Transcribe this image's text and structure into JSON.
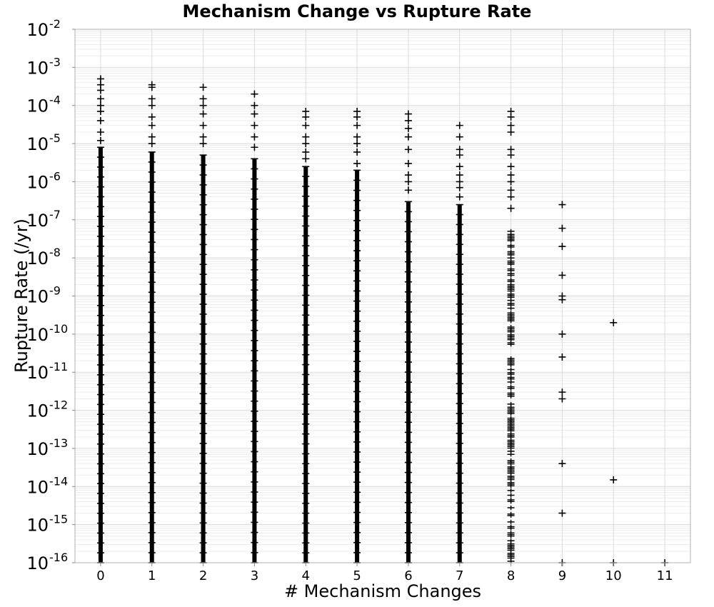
{
  "chart_data": {
    "type": "scatter",
    "title": "Mechanism Change vs Rupture Rate",
    "xlabel": "# Mechanism Changes",
    "ylabel": "Rupture Rate (/yr)",
    "xlim": [
      -0.5,
      11.5
    ],
    "ylim": [
      1e-16,
      0.01
    ],
    "yscale": "log",
    "grid": true,
    "marker": "+",
    "marker_color": "#000000",
    "x_ticks": [
      "0",
      "1",
      "2",
      "3",
      "4",
      "5",
      "6",
      "7",
      "8",
      "9",
      "10",
      "11"
    ],
    "y_tick_exponents": [
      -2,
      -3,
      -4,
      -5,
      -6,
      -7,
      -8,
      -9,
      -10,
      -11,
      -12,
      -13,
      -14,
      -15,
      -16
    ],
    "y_tick_base": "10",
    "series": [
      {
        "x": 0,
        "dense_range": [
          1e-16,
          8e-06
        ],
        "outliers": [
          0.0005,
          0.00035,
          0.00025,
          0.00015,
          0.0001,
          7e-05,
          4e-05,
          2e-05,
          1.2e-05
        ]
      },
      {
        "x": 1,
        "dense_range": [
          1e-16,
          6e-06
        ],
        "outliers": [
          0.00035,
          0.0003,
          0.00015,
          0.0001,
          5e-05,
          3e-05,
          1.5e-05,
          1e-05
        ]
      },
      {
        "x": 2,
        "dense_range": [
          1e-16,
          5e-06
        ],
        "outliers": [
          0.0003,
          0.00015,
          0.0001,
          6e-05,
          3e-05,
          1.5e-05,
          1e-05
        ]
      },
      {
        "x": 3,
        "dense_range": [
          1e-16,
          4e-06
        ],
        "outliers": [
          0.0002,
          0.0001,
          6e-05,
          3e-05,
          1.5e-05,
          8e-06
        ]
      },
      {
        "x": 4,
        "dense_range": [
          1e-16,
          2.5e-06
        ],
        "outliers": [
          7e-05,
          5e-05,
          3e-05,
          1.5e-05,
          1e-05,
          6e-06,
          4e-06
        ]
      },
      {
        "x": 5,
        "dense_range": [
          1e-16,
          2e-06
        ],
        "outliers": [
          7e-05,
          5e-05,
          3e-05,
          1.5e-05,
          1e-05,
          6e-06,
          3e-06
        ]
      },
      {
        "x": 6,
        "dense_range": [
          1e-16,
          3e-07
        ],
        "outliers": [
          6e-05,
          4e-05,
          2.5e-05,
          1.5e-05,
          7e-06,
          3e-06,
          1.5e-06,
          1e-06,
          6e-07
        ]
      },
      {
        "x": 7,
        "dense_range": [
          1e-16,
          2.5e-07
        ],
        "outliers": [
          3e-05,
          1.5e-05,
          7e-06,
          5e-06,
          2.5e-06,
          1.5e-06,
          1e-06,
          7e-07,
          4e-07
        ]
      },
      {
        "x": 8,
        "dense_range": [
          1e-16,
          5e-08
        ],
        "sparse": true,
        "outliers": [
          7e-05,
          5e-05,
          3e-05,
          2e-05,
          7e-06,
          5e-06,
          2.5e-06,
          1.5e-06,
          1e-06,
          6e-07,
          4e-07,
          2e-07
        ]
      },
      {
        "x": 9,
        "points": [
          2.5e-07,
          6e-08,
          2e-08,
          3.5e-09,
          1e-09,
          8e-10,
          1e-10,
          2.5e-11,
          3e-12,
          2e-12,
          4e-14,
          2e-15,
          1e-16
        ]
      },
      {
        "x": 10,
        "points": [
          2e-10,
          1.5e-14,
          1e-16
        ]
      },
      {
        "x": 11,
        "points": [
          1e-16
        ]
      }
    ]
  }
}
